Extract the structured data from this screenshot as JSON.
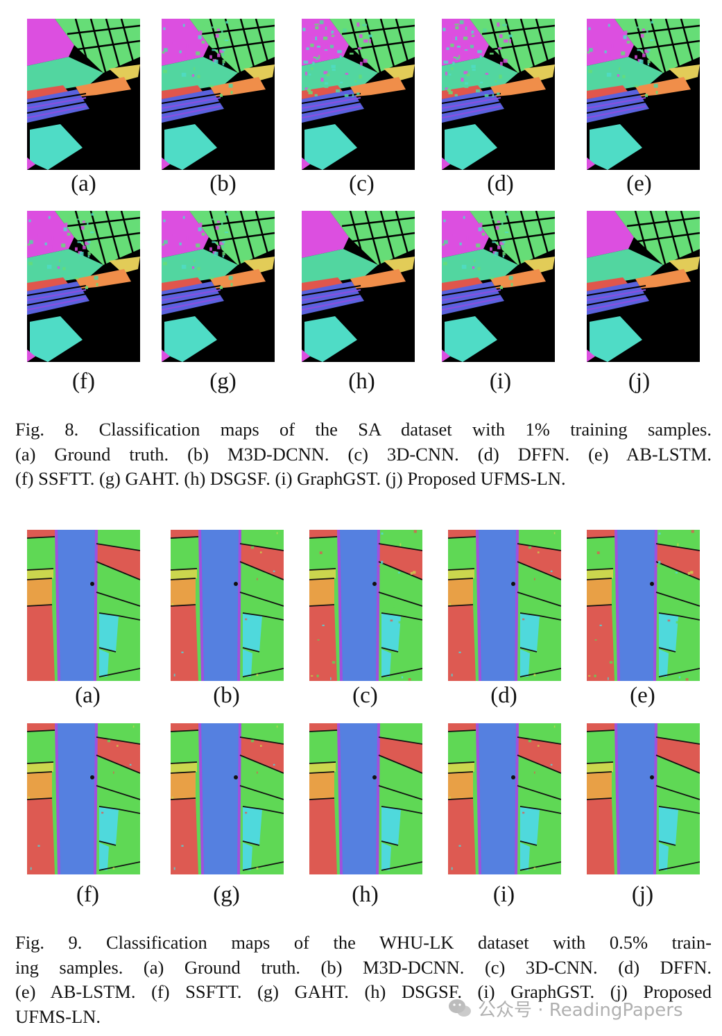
{
  "figures": [
    {
      "id": "fig8",
      "dataset": "SA",
      "panels": [
        {
          "label": "(a)",
          "method": "Ground truth"
        },
        {
          "label": "(b)",
          "method": "M3D-DCNN"
        },
        {
          "label": "(c)",
          "method": "3D-CNN"
        },
        {
          "label": "(d)",
          "method": "DFFN"
        },
        {
          "label": "(e)",
          "method": "AB-LSTM"
        },
        {
          "label": "(f)",
          "method": "SSFTT"
        },
        {
          "label": "(g)",
          "method": "GAHT"
        },
        {
          "label": "(h)",
          "method": "DSGSF"
        },
        {
          "label": "(i)",
          "method": "GraphGST"
        },
        {
          "label": "(j)",
          "method": "Proposed UFMS-LN"
        }
      ],
      "caption_lines": [
        "Fig. 8.    Classification maps of the SA dataset with 1% training samples.",
        "(a) Ground truth. (b) M3D-DCNN. (c) 3D-CNN. (d) DFFN. (e) AB-LSTM.",
        "(f) SSFTT. (g) GAHT. (h) DSGSF. (i) GraphGST. (j) Proposed UFMS-LN."
      ],
      "colors": {
        "background": "#000000",
        "magenta": "#dc4fe0",
        "green": "#66dd77",
        "teal": "#52d6a0",
        "orange": "#f08e4a",
        "yellow": "#e2cc58",
        "red": "#e0564c",
        "blue": "#5a62dd",
        "purple": "#8c4ee0",
        "cyan": "#4fdcc6"
      }
    },
    {
      "id": "fig9",
      "dataset": "WHU-LK",
      "panels": [
        {
          "label": "(a)",
          "method": "Ground truth"
        },
        {
          "label": "(b)",
          "method": "M3D-DCNN"
        },
        {
          "label": "(c)",
          "method": "3D-CNN"
        },
        {
          "label": "(d)",
          "method": "DFFN"
        },
        {
          "label": "(e)",
          "method": "AB-LSTM"
        },
        {
          "label": "(f)",
          "method": "SSFTT"
        },
        {
          "label": "(g)",
          "method": "GAHT"
        },
        {
          "label": "(h)",
          "method": "DSGSF"
        },
        {
          "label": "(i)",
          "method": "GraphGST"
        },
        {
          "label": "(j)",
          "method": "Proposed UFMS-LN"
        }
      ],
      "caption_lines": [
        "Fig. 9.    Classification maps of the WHU-LK dataset with 0.5% train-",
        "ing samples. (a) Ground truth. (b) M3D-DCNN. (c) 3D-CNN. (d) DFFN.",
        "(e) AB-LSTM. (f) SSFTT. (g) GAHT. (h) DSGSF. (i) GraphGST. (j) Proposed",
        "UFMS-LN."
      ],
      "colors": {
        "green": "#5fd855",
        "river": "#5580e0",
        "red": "#dd5a52",
        "orange": "#e8a046",
        "yellow": "#cbd64e",
        "cyan": "#4fd9dc",
        "bank": "#a050dd",
        "border": "#111111"
      }
    }
  ],
  "watermark": {
    "text": "公众号 · ReadingPapers",
    "icon": "wechat-icon"
  }
}
